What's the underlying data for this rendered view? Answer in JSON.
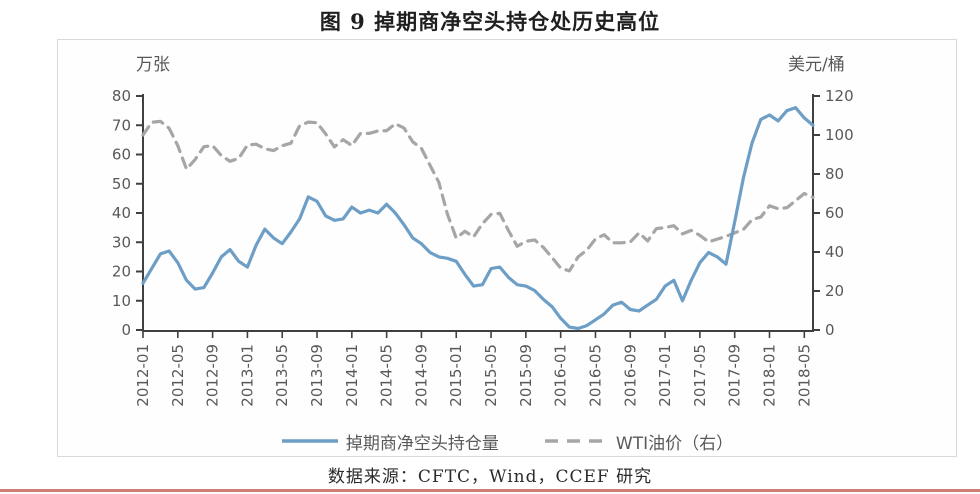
{
  "page": {
    "title": "图 9 掉期商净空头持仓处历史高位",
    "source": "数据来源：CFTC，Wind，CCEF 研究"
  },
  "colors": {
    "axis": "#404040",
    "tick_text": "#595959",
    "frame_border": "#d9d9d9",
    "bottom_rule": "#cf7d76",
    "net_short_line": "#6d9ec6",
    "wti_line": "#a6a6a6"
  },
  "chart_data": {
    "type": "line",
    "title": "图 9 掉期商净空头持仓处历史高位",
    "grid": "off",
    "legend_position": "bottom",
    "x": [
      "2012-01",
      "2012-02",
      "2012-03",
      "2012-04",
      "2012-05",
      "2012-06",
      "2012-07",
      "2012-08",
      "2012-09",
      "2012-10",
      "2012-11",
      "2012-12",
      "2013-01",
      "2013-02",
      "2013-03",
      "2013-04",
      "2013-05",
      "2013-06",
      "2013-07",
      "2013-08",
      "2013-09",
      "2013-10",
      "2013-11",
      "2013-12",
      "2014-01",
      "2014-02",
      "2014-03",
      "2014-04",
      "2014-05",
      "2014-06",
      "2014-07",
      "2014-08",
      "2014-09",
      "2014-10",
      "2014-11",
      "2014-12",
      "2015-01",
      "2015-02",
      "2015-03",
      "2015-04",
      "2015-05",
      "2015-06",
      "2015-07",
      "2015-08",
      "2015-09",
      "2015-10",
      "2015-11",
      "2015-12",
      "2016-01",
      "2016-02",
      "2016-03",
      "2016-04",
      "2016-05",
      "2016-06",
      "2016-07",
      "2016-08",
      "2016-09",
      "2016-10",
      "2016-11",
      "2016-12",
      "2017-01",
      "2017-02",
      "2017-03",
      "2017-04",
      "2017-05",
      "2017-06",
      "2017-07",
      "2017-08",
      "2017-09",
      "2017-10",
      "2017-11",
      "2017-12",
      "2018-01",
      "2018-02",
      "2018-03",
      "2018-04",
      "2018-05",
      "2018-06"
    ],
    "x_tick_labels": [
      "2012-01",
      "2012-05",
      "2012-09",
      "2013-01",
      "2013-05",
      "2013-09",
      "2014-01",
      "2014-05",
      "2014-09",
      "2015-01",
      "2015-05",
      "2015-09",
      "2016-01",
      "2016-05",
      "2016-09",
      "2017-01",
      "2017-05",
      "2017-09",
      "2018-01",
      "2018-05"
    ],
    "left_axis": {
      "unit": "万张",
      "min": 0,
      "max": 80,
      "tick_step": 10,
      "ticks": [
        0,
        10,
        20,
        30,
        40,
        50,
        60,
        70,
        80
      ]
    },
    "right_axis": {
      "unit": "美元/桶",
      "min": 0,
      "max": 120,
      "tick_step": 20,
      "ticks": [
        0,
        20,
        40,
        60,
        80,
        100,
        120
      ]
    },
    "series": [
      {
        "name": "掉期商净空头持仓量",
        "axis": "left",
        "line_style": "solid",
        "color": "#6d9ec6",
        "values": [
          16,
          21,
          26,
          27,
          23,
          17,
          14,
          14.5,
          19.5,
          25,
          27.5,
          23.5,
          21.5,
          29,
          34.5,
          31.5,
          29.5,
          33.5,
          38,
          45.5,
          44,
          39,
          37.5,
          38,
          42,
          40,
          41,
          40,
          43,
          40,
          36,
          31.5,
          29.5,
          26.5,
          25,
          24.5,
          23.5,
          19,
          15,
          15.5,
          21,
          21.5,
          18,
          15.5,
          15,
          13.5,
          10.5,
          8,
          4,
          1,
          0.5,
          1.5,
          3.5,
          5.5,
          8.5,
          9.5,
          7,
          6.5,
          8.5,
          10.5,
          15,
          17,
          10,
          17,
          23,
          26.5,
          25,
          22.5,
          37,
          52,
          64,
          72,
          73.5,
          71.5,
          75,
          76,
          72.5,
          70
        ]
      },
      {
        "name": "WTI油价（右）",
        "axis": "right",
        "line_style": "dashed",
        "color": "#a6a6a6",
        "values": [
          100,
          106.5,
          107,
          103.5,
          94.5,
          82.5,
          87.5,
          94,
          94.5,
          89.5,
          86.5,
          88,
          94.8,
          95.3,
          93,
          92,
          94.5,
          95.8,
          104.7,
          106.6,
          106.3,
          100.5,
          93.9,
          97.6,
          94.6,
          100.8,
          100.8,
          102.1,
          102.2,
          105.8,
          103.6,
          96.5,
          93.2,
          84.4,
          75.8,
          59.3,
          47.2,
          50.6,
          47.8,
          54.5,
          59.3,
          59.8,
          51,
          42.9,
          45.5,
          46.2,
          42.4,
          37.2,
          31.7,
          30.3,
          37.5,
          41,
          46.7,
          48.8,
          44.7,
          44.7,
          45.2,
          49.8,
          45.7,
          52,
          52.5,
          53.5,
          49.3,
          51.1,
          48.5,
          45.2,
          46.6,
          48,
          49.8,
          51.6,
          56.6,
          57.9,
          63.7,
          62.2,
          62.7,
          66.3,
          70,
          68
        ]
      }
    ]
  }
}
